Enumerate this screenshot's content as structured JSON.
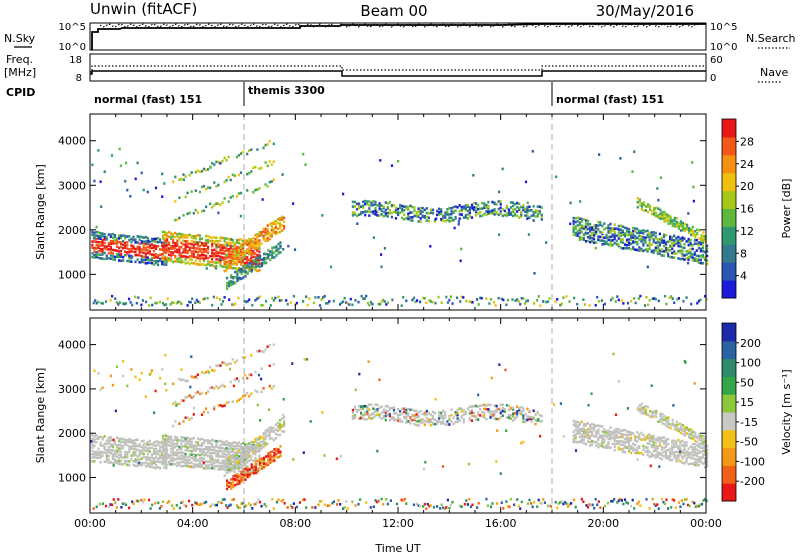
{
  "header": {
    "station": "Unwin (fitACF)",
    "beam": "Beam 00",
    "date": "30/May/2016"
  },
  "colors": {
    "axis": "#000000",
    "divider": "#999999",
    "ground_scatter": "#c0c0bc"
  },
  "status_panels": {
    "nsky_label": "N.Sky",
    "nsearch_label": "N.Search",
    "nsky_ticks": [
      "10^5",
      "10^0"
    ],
    "nsearch_ticks": [
      "10^5",
      "10^0"
    ],
    "freq_label_1": "Freq.",
    "freq_label_2": "[MHz]",
    "freq_ticks": [
      "18",
      "8"
    ],
    "nave_label": "Nave",
    "nave_ticks": [
      "60",
      "0"
    ],
    "cpid_label": "CPID",
    "cpid_segments": [
      {
        "label": "normal (fast) 151",
        "start_h": 0,
        "end_h": 6
      },
      {
        "label": "themis 3300",
        "start_h": 6,
        "end_h": 18
      },
      {
        "label": "normal (fast) 151",
        "start_h": 18,
        "end_h": 24
      }
    ]
  },
  "chart_data": [
    {
      "type": "heatmap",
      "title": "",
      "xlabel": "Time UT",
      "ylabel": "Slant Range [km]",
      "x_ticks": [
        "00:00",
        "04:00",
        "08:00",
        "12:00",
        "16:00",
        "20:00",
        "00:00"
      ],
      "xlim_hours": [
        0,
        24
      ],
      "y_ticks": [
        1000,
        2000,
        3000,
        4000
      ],
      "ylim": [
        200,
        4600
      ],
      "colorbar": {
        "label": "Power [dB]",
        "ticks": [
          "4",
          "8",
          "12",
          "16",
          "20",
          "24",
          "28"
        ],
        "range": [
          0,
          32
        ],
        "colors": [
          "#1a1ad8",
          "#2c55b0",
          "#347a8c",
          "#2e9870",
          "#5eb83c",
          "#a8c818",
          "#f0c010",
          "#f59010",
          "#f25818",
          "#e81818"
        ]
      }
    },
    {
      "type": "heatmap",
      "title": "",
      "xlabel": "Time UT",
      "ylabel": "Slant Range [km]",
      "x_ticks": [
        "00:00",
        "04:00",
        "08:00",
        "12:00",
        "16:00",
        "20:00",
        "00:00"
      ],
      "xlim_hours": [
        0,
        24
      ],
      "y_ticks": [
        1000,
        2000,
        3000,
        4000
      ],
      "ylim": [
        200,
        4600
      ],
      "colorbar": {
        "label": "Velocity [m s⁻¹]",
        "ticks": [
          "200",
          "100",
          "50",
          "15",
          "-15",
          "-50",
          "-100",
          "-200"
        ],
        "colors": [
          "#1b2aa8",
          "#2a62a4",
          "#2f8a6c",
          "#34a54a",
          "#8cc83c",
          "#c8c8c4",
          "#f0c018",
          "#f29a16",
          "#f06018",
          "#e81818"
        ]
      }
    }
  ],
  "lower_panel_xlabel": "Time UT"
}
